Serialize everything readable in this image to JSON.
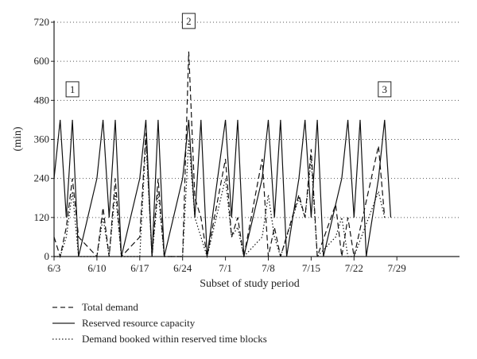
{
  "chart_data": {
    "type": "line",
    "title": "",
    "xlabel": "Subset of study period",
    "ylabel": "(min)",
    "x_ticks": [
      {
        "day": 0,
        "label": "6/3"
      },
      {
        "day": 7,
        "label": "6/10"
      },
      {
        "day": 14,
        "label": "6/17"
      },
      {
        "day": 21,
        "label": "6/24"
      },
      {
        "day": 28,
        "label": "7/1"
      },
      {
        "day": 35,
        "label": "7/8"
      },
      {
        "day": 42,
        "label": "7/15"
      },
      {
        "day": 49,
        "label": "7/22"
      },
      {
        "day": 56,
        "label": "7/29"
      }
    ],
    "xlim": [
      0,
      60
    ],
    "ylim": [
      0,
      720
    ],
    "y_ticks": [
      0,
      120,
      240,
      360,
      480,
      600,
      720
    ],
    "grid": "horizontal dotted",
    "series": [
      {
        "name": "Total demand",
        "style": "dashed",
        "points": [
          [
            0,
            60
          ],
          [
            1,
            0
          ],
          [
            2,
            90
          ],
          [
            3,
            240
          ],
          [
            4,
            60
          ],
          [
            7,
            0
          ],
          [
            8,
            150
          ],
          [
            9,
            0
          ],
          [
            10,
            240
          ],
          [
            11,
            0
          ],
          [
            14,
            60
          ],
          [
            15,
            380
          ],
          [
            16,
            0
          ],
          [
            17,
            240
          ],
          [
            18,
            0
          ],
          [
            21,
            0
          ],
          [
            22,
            630
          ],
          [
            23,
            180
          ],
          [
            24,
            120
          ],
          [
            25,
            0
          ],
          [
            28,
            300
          ],
          [
            29,
            60
          ],
          [
            30,
            120
          ],
          [
            31,
            0
          ],
          [
            34,
            300
          ],
          [
            35,
            0
          ],
          [
            36,
            90
          ],
          [
            37,
            0
          ],
          [
            40,
            190
          ],
          [
            41,
            120
          ],
          [
            42,
            330
          ],
          [
            43,
            0
          ],
          [
            46,
            160
          ],
          [
            47,
            0
          ],
          [
            48,
            120
          ],
          [
            49,
            0
          ],
          [
            53,
            340
          ],
          [
            54,
            120
          ]
        ]
      },
      {
        "name": "Reserved resource capacity",
        "style": "solid",
        "points": [
          [
            0,
            240
          ],
          [
            1,
            420
          ],
          [
            2,
            120
          ],
          [
            3,
            420
          ],
          [
            4,
            0
          ],
          [
            7,
            240
          ],
          [
            8,
            420
          ],
          [
            9,
            120
          ],
          [
            10,
            420
          ],
          [
            11,
            0
          ],
          [
            14,
            240
          ],
          [
            15,
            420
          ],
          [
            16,
            0
          ],
          [
            17,
            420
          ],
          [
            18,
            0
          ],
          [
            21,
            240
          ],
          [
            22,
            420
          ],
          [
            23,
            120
          ],
          [
            24,
            420
          ],
          [
            25,
            0
          ],
          [
            28,
            420
          ],
          [
            29,
            120
          ],
          [
            30,
            420
          ],
          [
            31,
            0
          ],
          [
            34,
            240
          ],
          [
            35,
            420
          ],
          [
            36,
            120
          ],
          [
            37,
            420
          ],
          [
            38,
            0
          ],
          [
            40,
            240
          ],
          [
            41,
            420
          ],
          [
            42,
            120
          ],
          [
            43,
            420
          ],
          [
            44,
            0
          ],
          [
            47,
            240
          ],
          [
            48,
            420
          ],
          [
            49,
            120
          ],
          [
            50,
            420
          ],
          [
            51,
            0
          ],
          [
            53,
            240
          ],
          [
            54,
            420
          ],
          [
            55,
            120
          ]
        ]
      },
      {
        "name": "Demand booked within reserved time blocks",
        "style": "dotted",
        "points": [
          [
            0,
            0
          ],
          [
            1,
            0
          ],
          [
            2,
            60
          ],
          [
            3,
            200
          ],
          [
            4,
            0
          ],
          [
            7,
            0
          ],
          [
            8,
            120
          ],
          [
            9,
            0
          ],
          [
            10,
            200
          ],
          [
            11,
            0
          ],
          [
            14,
            0
          ],
          [
            15,
            360
          ],
          [
            16,
            0
          ],
          [
            17,
            200
          ],
          [
            18,
            0
          ],
          [
            21,
            0
          ],
          [
            22,
            360
          ],
          [
            23,
            120
          ],
          [
            24,
            60
          ],
          [
            25,
            0
          ],
          [
            28,
            240
          ],
          [
            29,
            60
          ],
          [
            30,
            90
          ],
          [
            31,
            0
          ],
          [
            34,
            60
          ],
          [
            35,
            190
          ],
          [
            36,
            60
          ],
          [
            37,
            0
          ],
          [
            40,
            180
          ],
          [
            41,
            120
          ],
          [
            42,
            300
          ],
          [
            43,
            0
          ],
          [
            46,
            60
          ],
          [
            47,
            120
          ],
          [
            48,
            0
          ],
          [
            49,
            0
          ],
          [
            53,
            200
          ],
          [
            54,
            120
          ]
        ]
      }
    ],
    "annotations": [
      {
        "label": "1",
        "day": 3
      },
      {
        "label": "2",
        "day": 22
      },
      {
        "label": "3",
        "day": 54
      }
    ],
    "legend_position": "bottom-left"
  }
}
